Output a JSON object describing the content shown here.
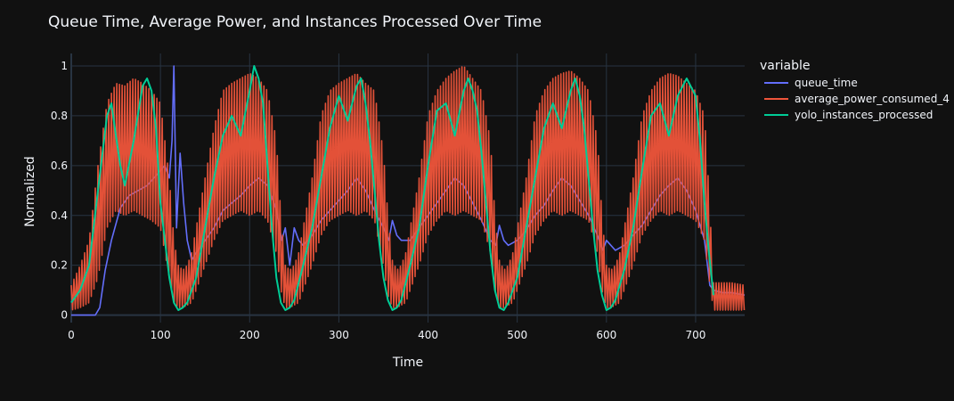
{
  "chart_data": {
    "type": "line",
    "title": "Queue Time, Average Power, and Instances Processed Over Time",
    "xlabel": "Time",
    "ylabel": "Normalized",
    "xlim": [
      0,
      755
    ],
    "ylim": [
      -0.03,
      1.05
    ],
    "xticks": [
      0,
      100,
      200,
      300,
      400,
      500,
      600,
      700
    ],
    "yticks": [
      0,
      0.2,
      0.4,
      0.6,
      0.8,
      1
    ],
    "grid": true,
    "legend": {
      "title": "variable",
      "placement": "right"
    },
    "series": [
      {
        "name": "queue_time",
        "color": "#636efa",
        "x": [
          0,
          10,
          20,
          27,
          32,
          38,
          45,
          55,
          65,
          75,
          85,
          95,
          105,
          110,
          113,
          115,
          118,
          122,
          126,
          130,
          135,
          140,
          150,
          160,
          170,
          180,
          190,
          200,
          210,
          220,
          230,
          236,
          240,
          245,
          250,
          255,
          260,
          270,
          280,
          290,
          300,
          310,
          320,
          330,
          340,
          350,
          356,
          360,
          365,
          370,
          380,
          390,
          400,
          410,
          420,
          430,
          440,
          450,
          460,
          470,
          476,
          480,
          485,
          490,
          500,
          510,
          520,
          530,
          540,
          550,
          560,
          570,
          580,
          590,
          596,
          600,
          605,
          610,
          620,
          630,
          640,
          650,
          660,
          670,
          680,
          690,
          700,
          710,
          716,
          720,
          730,
          740,
          755
        ],
        "y": [
          0,
          0,
          0,
          0,
          0.03,
          0.18,
          0.3,
          0.43,
          0.48,
          0.5,
          0.52,
          0.56,
          0.6,
          0.55,
          0.7,
          1.0,
          0.35,
          0.65,
          0.45,
          0.3,
          0.22,
          0.25,
          0.3,
          0.35,
          0.42,
          0.45,
          0.48,
          0.52,
          0.55,
          0.52,
          0.42,
          0.3,
          0.35,
          0.2,
          0.35,
          0.3,
          0.28,
          0.32,
          0.38,
          0.42,
          0.46,
          0.5,
          0.55,
          0.5,
          0.42,
          0.35,
          0.3,
          0.38,
          0.32,
          0.3,
          0.3,
          0.35,
          0.4,
          0.45,
          0.5,
          0.55,
          0.52,
          0.45,
          0.38,
          0.3,
          0.28,
          0.36,
          0.3,
          0.28,
          0.3,
          0.34,
          0.4,
          0.44,
          0.5,
          0.55,
          0.52,
          0.46,
          0.4,
          0.32,
          0.26,
          0.3,
          0.28,
          0.26,
          0.28,
          0.32,
          0.36,
          0.42,
          0.48,
          0.52,
          0.55,
          0.5,
          0.42,
          0.3,
          0.12,
          0.1,
          0.09,
          0.09,
          0.08
        ]
      },
      {
        "name": "average_power_consumed_4",
        "color": "#ef553b",
        "x": [
          0,
          10,
          20,
          30,
          40,
          50,
          60,
          70,
          80,
          90,
          100,
          110,
          115,
          120,
          125,
          130,
          135,
          140,
          150,
          160,
          170,
          180,
          190,
          200,
          210,
          220,
          230,
          235,
          240,
          245,
          250,
          255,
          260,
          270,
          280,
          290,
          300,
          310,
          320,
          330,
          340,
          350,
          355,
          360,
          365,
          370,
          375,
          380,
          390,
          400,
          410,
          420,
          430,
          440,
          450,
          460,
          470,
          475,
          480,
          485,
          490,
          495,
          500,
          510,
          520,
          530,
          540,
          550,
          560,
          570,
          580,
          590,
          595,
          600,
          605,
          610,
          615,
          620,
          630,
          640,
          650,
          660,
          670,
          680,
          690,
          700,
          710,
          715,
          720,
          730,
          740,
          755
        ],
        "high": [
          0.12,
          0.2,
          0.3,
          0.6,
          0.85,
          0.93,
          0.92,
          0.95,
          0.93,
          0.9,
          0.85,
          0.55,
          0.3,
          0.2,
          0.18,
          0.2,
          0.25,
          0.35,
          0.55,
          0.75,
          0.9,
          0.93,
          0.95,
          0.97,
          0.95,
          0.9,
          0.7,
          0.4,
          0.2,
          0.18,
          0.2,
          0.25,
          0.35,
          0.55,
          0.8,
          0.9,
          0.93,
          0.95,
          0.97,
          0.93,
          0.9,
          0.65,
          0.4,
          0.22,
          0.18,
          0.2,
          0.25,
          0.35,
          0.55,
          0.8,
          0.9,
          0.95,
          0.98,
          1.0,
          0.95,
          0.9,
          0.7,
          0.4,
          0.22,
          0.18,
          0.2,
          0.25,
          0.35,
          0.55,
          0.8,
          0.9,
          0.95,
          0.97,
          0.98,
          0.95,
          0.9,
          0.7,
          0.4,
          0.2,
          0.18,
          0.2,
          0.25,
          0.35,
          0.55,
          0.8,
          0.9,
          0.95,
          0.97,
          0.96,
          0.93,
          0.9,
          0.8,
          0.5,
          0.13,
          0.13,
          0.13,
          0.12
        ],
        "low": [
          0.02,
          0.03,
          0.05,
          0.15,
          0.35,
          0.42,
          0.4,
          0.42,
          0.4,
          0.38,
          0.35,
          0.15,
          0.05,
          0.03,
          0.03,
          0.04,
          0.05,
          0.1,
          0.2,
          0.3,
          0.38,
          0.4,
          0.42,
          0.4,
          0.42,
          0.38,
          0.25,
          0.1,
          0.03,
          0.03,
          0.04,
          0.05,
          0.1,
          0.2,
          0.32,
          0.38,
          0.4,
          0.42,
          0.4,
          0.42,
          0.38,
          0.2,
          0.08,
          0.03,
          0.03,
          0.04,
          0.05,
          0.1,
          0.2,
          0.32,
          0.38,
          0.42,
          0.4,
          0.42,
          0.4,
          0.38,
          0.25,
          0.1,
          0.03,
          0.03,
          0.04,
          0.05,
          0.1,
          0.2,
          0.32,
          0.38,
          0.42,
          0.4,
          0.42,
          0.4,
          0.38,
          0.25,
          0.1,
          0.03,
          0.03,
          0.04,
          0.05,
          0.1,
          0.2,
          0.32,
          0.38,
          0.42,
          0.4,
          0.42,
          0.4,
          0.38,
          0.3,
          0.15,
          0.02,
          0.02,
          0.02,
          0.02
        ]
      },
      {
        "name": "yolo_instances_processed",
        "color": "#00cc96",
        "x": [
          0,
          10,
          20,
          30,
          40,
          45,
          50,
          55,
          60,
          70,
          80,
          85,
          90,
          95,
          100,
          105,
          110,
          115,
          120,
          125,
          130,
          140,
          150,
          160,
          170,
          180,
          190,
          200,
          205,
          210,
          215,
          220,
          225,
          230,
          235,
          240,
          245,
          250,
          260,
          270,
          280,
          290,
          300,
          310,
          320,
          325,
          330,
          335,
          340,
          345,
          350,
          355,
          360,
          365,
          370,
          380,
          390,
          400,
          410,
          420,
          430,
          440,
          445,
          450,
          455,
          460,
          465,
          470,
          475,
          480,
          485,
          490,
          500,
          510,
          520,
          530,
          540,
          550,
          560,
          565,
          570,
          575,
          580,
          585,
          590,
          595,
          600,
          605,
          610,
          620,
          630,
          640,
          650,
          660,
          670,
          680,
          690,
          700,
          705,
          710,
          715,
          720
        ],
        "y": [
          0.05,
          0.1,
          0.2,
          0.5,
          0.8,
          0.85,
          0.72,
          0.6,
          0.52,
          0.7,
          0.92,
          0.95,
          0.9,
          0.75,
          0.45,
          0.3,
          0.15,
          0.05,
          0.02,
          0.03,
          0.05,
          0.15,
          0.35,
          0.55,
          0.72,
          0.8,
          0.72,
          0.9,
          1.0,
          0.95,
          0.85,
          0.6,
          0.35,
          0.15,
          0.05,
          0.02,
          0.03,
          0.06,
          0.2,
          0.35,
          0.55,
          0.75,
          0.88,
          0.78,
          0.92,
          0.95,
          0.85,
          0.7,
          0.5,
          0.3,
          0.15,
          0.06,
          0.02,
          0.03,
          0.06,
          0.2,
          0.35,
          0.6,
          0.82,
          0.85,
          0.72,
          0.9,
          0.95,
          0.9,
          0.82,
          0.65,
          0.45,
          0.25,
          0.1,
          0.03,
          0.02,
          0.05,
          0.15,
          0.35,
          0.55,
          0.75,
          0.85,
          0.75,
          0.9,
          0.95,
          0.88,
          0.75,
          0.55,
          0.35,
          0.18,
          0.08,
          0.02,
          0.03,
          0.06,
          0.18,
          0.35,
          0.58,
          0.8,
          0.85,
          0.72,
          0.88,
          0.95,
          0.88,
          0.7,
          0.45,
          0.25,
          0.08
        ]
      }
    ]
  }
}
